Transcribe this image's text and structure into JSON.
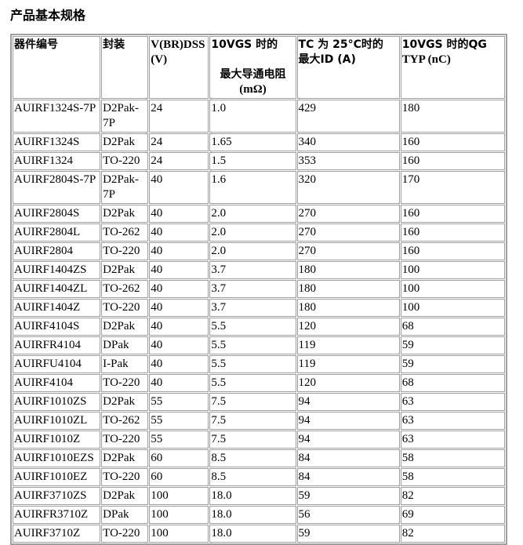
{
  "title": "产品基本规格",
  "headers": [
    {
      "line1": "器件编号",
      "line2": ""
    },
    {
      "line1": "封装",
      "line2": ""
    },
    {
      "line1": "V(BR)DSS",
      "line2": "(V)"
    },
    {
      "line1": "10VGS 时的",
      "line2": "最大导通电阻",
      "line3": "(mΩ)"
    },
    {
      "line1": "TC 为  25°C时的",
      "line2": "最大ID (A)"
    },
    {
      "line1": "10VGS 时的QG",
      "line2": "TYP (nC)"
    }
  ],
  "rows": [
    [
      "AUIRF1324S-7P",
      "D2Pak-7P",
      "24",
      "1.0",
      "429",
      "180"
    ],
    [
      "AUIRF1324S",
      "D2Pak",
      "24",
      "1.65",
      "340",
      "160"
    ],
    [
      "AUIRF1324",
      "TO-220",
      "24",
      "1.5",
      "353",
      "160"
    ],
    [
      "AUIRF2804S-7P",
      "D2Pak-7P",
      "40",
      "1.6",
      "320",
      "170"
    ],
    [
      "AUIRF2804S",
      "D2Pak",
      "40",
      "2.0",
      "270",
      "160"
    ],
    [
      "AUIRF2804L",
      "TO-262",
      "40",
      "2.0",
      "270",
      "160"
    ],
    [
      "AUIRF2804",
      "TO-220",
      "40",
      "2.0",
      "270",
      "160"
    ],
    [
      "AUIRF1404ZS",
      "D2Pak",
      "40",
      "3.7",
      "180",
      "100"
    ],
    [
      "AUIRF1404ZL",
      "TO-262",
      "40",
      "3.7",
      "180",
      "100"
    ],
    [
      "AUIRF1404Z",
      "TO-220",
      "40",
      "3.7",
      "180",
      "100"
    ],
    [
      "AUIRF4104S",
      "D2Pak",
      "40",
      "5.5",
      "120",
      "68"
    ],
    [
      "AUIRFR4104",
      "DPak",
      "40",
      "5.5",
      "119",
      "59"
    ],
    [
      "AUIRFU4104",
      "I-Pak",
      "40",
      "5.5",
      "119",
      "59"
    ],
    [
      "AUIRF4104",
      "TO-220",
      "40",
      "5.5",
      "120",
      "68"
    ],
    [
      "AUIRF1010ZS",
      "D2Pak",
      "55",
      "7.5",
      "94",
      "63"
    ],
    [
      "AUIRF1010ZL",
      "TO-262",
      "55",
      "7.5",
      "94",
      "63"
    ],
    [
      "AUIRF1010Z",
      "TO-220",
      "55",
      "7.5",
      "94",
      "63"
    ],
    [
      "AUIRF1010EZS",
      "D2Pak",
      "60",
      "8.5",
      "84",
      "58"
    ],
    [
      "AUIRF1010EZ",
      "TO-220",
      "60",
      "8.5",
      "84",
      "58"
    ],
    [
      "AUIRF3710ZS",
      "D2Pak",
      "100",
      "18.0",
      "59",
      "82"
    ],
    [
      "AUIRFR3710Z",
      "DPak",
      "100",
      "18.0",
      "56",
      "69"
    ],
    [
      "AUIRF3710Z",
      "TO-220",
      "100",
      "18.0",
      "59",
      "82"
    ]
  ]
}
